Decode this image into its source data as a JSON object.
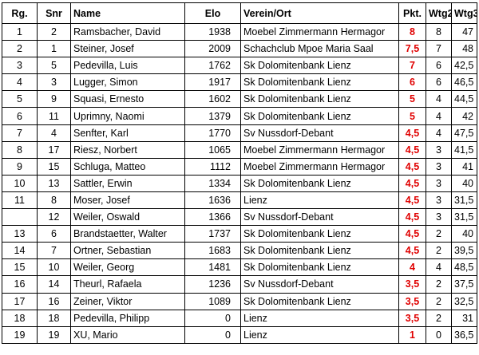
{
  "headers": {
    "rg": "Rg.",
    "snr": "Snr",
    "name": "Name",
    "elo": "Elo",
    "verein": "Verein/Ort",
    "pkt": "Pkt.",
    "wtg2": "Wtg2",
    "wtg3": "Wtg3"
  },
  "colors": {
    "points": "#e00000",
    "border": "#000000"
  },
  "rows": [
    {
      "rg": "1",
      "snr": "2",
      "name": "Ramsbacher, David",
      "elo": "1938",
      "verein": "Moebel Zimmermann Hermagor",
      "pkt": "8",
      "wtg2": "8",
      "wtg3": "47"
    },
    {
      "rg": "2",
      "snr": "1",
      "name": "Steiner, Josef",
      "elo": "2009",
      "verein": "Schachclub Mpoe Maria Saal",
      "pkt": "7,5",
      "wtg2": "7",
      "wtg3": "48"
    },
    {
      "rg": "3",
      "snr": "5",
      "name": "Pedevilla, Luis",
      "elo": "1762",
      "verein": "Sk Dolomitenbank Lienz",
      "pkt": "7",
      "wtg2": "6",
      "wtg3": "42,5"
    },
    {
      "rg": "4",
      "snr": "3",
      "name": "Lugger, Simon",
      "elo": "1917",
      "verein": "Sk Dolomitenbank Lienz",
      "pkt": "6",
      "wtg2": "6",
      "wtg3": "46,5"
    },
    {
      "rg": "5",
      "snr": "9",
      "name": "Squasi, Ernesto",
      "elo": "1602",
      "verein": "Sk Dolomitenbank Lienz",
      "pkt": "5",
      "wtg2": "4",
      "wtg3": "44,5"
    },
    {
      "rg": "6",
      "snr": "11",
      "name": "Uprimny, Naomi",
      "elo": "1379",
      "verein": "Sk Dolomitenbank Lienz",
      "pkt": "5",
      "wtg2": "4",
      "wtg3": "42"
    },
    {
      "rg": "7",
      "snr": "4",
      "name": "Senfter, Karl",
      "elo": "1770",
      "verein": "Sv Nussdorf-Debant",
      "pkt": "4,5",
      "wtg2": "4",
      "wtg3": "47,5"
    },
    {
      "rg": "8",
      "snr": "17",
      "name": "Riesz, Norbert",
      "elo": "1065",
      "verein": "Moebel Zimmermann Hermagor",
      "pkt": "4,5",
      "wtg2": "3",
      "wtg3": "41,5"
    },
    {
      "rg": "9",
      "snr": "15",
      "name": "Schluga, Matteo",
      "elo": "1112",
      "verein": "Moebel Zimmermann Hermagor",
      "pkt": "4,5",
      "wtg2": "3",
      "wtg3": "41"
    },
    {
      "rg": "10",
      "snr": "13",
      "name": "Sattler, Erwin",
      "elo": "1334",
      "verein": "Sk Dolomitenbank Lienz",
      "pkt": "4,5",
      "wtg2": "3",
      "wtg3": "40"
    },
    {
      "rg": "11",
      "snr": "8",
      "name": "Moser, Josef",
      "elo": "1636",
      "verein": "Lienz",
      "pkt": "4,5",
      "wtg2": "3",
      "wtg3": "31,5"
    },
    {
      "rg": "",
      "snr": "12",
      "name": "Weiler, Oswald",
      "elo": "1366",
      "verein": "Sv Nussdorf-Debant",
      "pkt": "4,5",
      "wtg2": "3",
      "wtg3": "31,5"
    },
    {
      "rg": "13",
      "snr": "6",
      "name": "Brandstaetter, Walter",
      "elo": "1737",
      "verein": "Sk Dolomitenbank Lienz",
      "pkt": "4,5",
      "wtg2": "2",
      "wtg3": "40"
    },
    {
      "rg": "14",
      "snr": "7",
      "name": "Ortner, Sebastian",
      "elo": "1683",
      "verein": "Sk Dolomitenbank Lienz",
      "pkt": "4,5",
      "wtg2": "2",
      "wtg3": "39,5"
    },
    {
      "rg": "15",
      "snr": "10",
      "name": "Weiler, Georg",
      "elo": "1481",
      "verein": "Sk Dolomitenbank Lienz",
      "pkt": "4",
      "wtg2": "4",
      "wtg3": "48,5"
    },
    {
      "rg": "16",
      "snr": "14",
      "name": "Theurl, Rafaela",
      "elo": "1236",
      "verein": "Sv Nussdorf-Debant",
      "pkt": "3,5",
      "wtg2": "2",
      "wtg3": "37,5"
    },
    {
      "rg": "17",
      "snr": "16",
      "name": "Zeiner, Viktor",
      "elo": "1089",
      "verein": "Sk Dolomitenbank Lienz",
      "pkt": "3,5",
      "wtg2": "2",
      "wtg3": "32,5"
    },
    {
      "rg": "18",
      "snr": "18",
      "name": "Pedevilla, Philipp",
      "elo": "0",
      "verein": "Lienz",
      "pkt": "3,5",
      "wtg2": "2",
      "wtg3": "31"
    },
    {
      "rg": "19",
      "snr": "19",
      "name": "XU, Mario",
      "elo": "0",
      "verein": "Lienz",
      "pkt": "1",
      "wtg2": "0",
      "wtg3": "36,5"
    }
  ]
}
